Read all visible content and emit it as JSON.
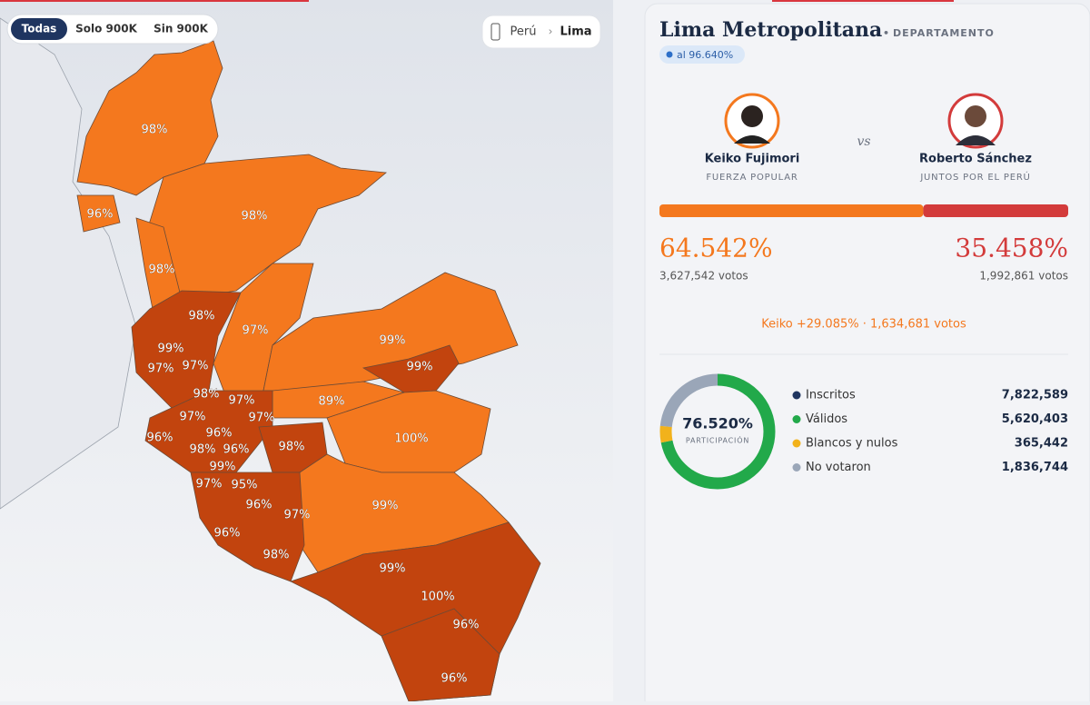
{
  "map": {
    "filters": [
      "Todas",
      "Solo 900K",
      "Sin 900K"
    ],
    "breadcrumb": [
      "Perú",
      "Lima"
    ],
    "labels": [
      "98%",
      "96%",
      "98%",
      "98%",
      "98%",
      "97%",
      "99%",
      "99%",
      "97%",
      "97%",
      "99%",
      "98%",
      "97%",
      "89%",
      "97%",
      "97%",
      "96%",
      "100%",
      "96%",
      "98%",
      "96%",
      "98%",
      "99%",
      "97%",
      "95%",
      "96%",
      "99%",
      "97%",
      "96%",
      "98%",
      "99%",
      "100%",
      "96%",
      "96%"
    ]
  },
  "panel": {
    "title": "Lima Metropolitana",
    "kind": "DEPARTAMENTO",
    "progress": "al 96.640%",
    "vs": "vs",
    "candidates": [
      {
        "name": "Keiko Fujimori",
        "party": "FUERZA POPULAR",
        "pct": {
          "value": 64.542,
          "label": "64.542%"
        },
        "votes": "3,627,542 votos"
      },
      {
        "name": "Roberto Sánchez",
        "party": "JUNTOS POR EL PERÚ",
        "pct": {
          "value": 35.458,
          "label": "35.458%"
        },
        "votes": "1,992,861 votos"
      }
    ],
    "lead": "Keiko +29.085% · 1,634,681 votos",
    "participation": {
      "value": "76.520%",
      "caption": "PARTICIPACIÓN"
    },
    "stats": [
      {
        "label": "Inscritos",
        "count": {
          "value": 7822589,
          "label": "7,822,589"
        }
      },
      {
        "label": "Válidos",
        "count": {
          "value": 5620403,
          "label": "5,620,403"
        }
      },
      {
        "label": "Blancos y nulos",
        "count": {
          "value": 365442,
          "label": "365,442"
        }
      },
      {
        "label": "No votaron",
        "count": {
          "value": 1836744,
          "label": "1,836,744"
        }
      }
    ]
  }
}
